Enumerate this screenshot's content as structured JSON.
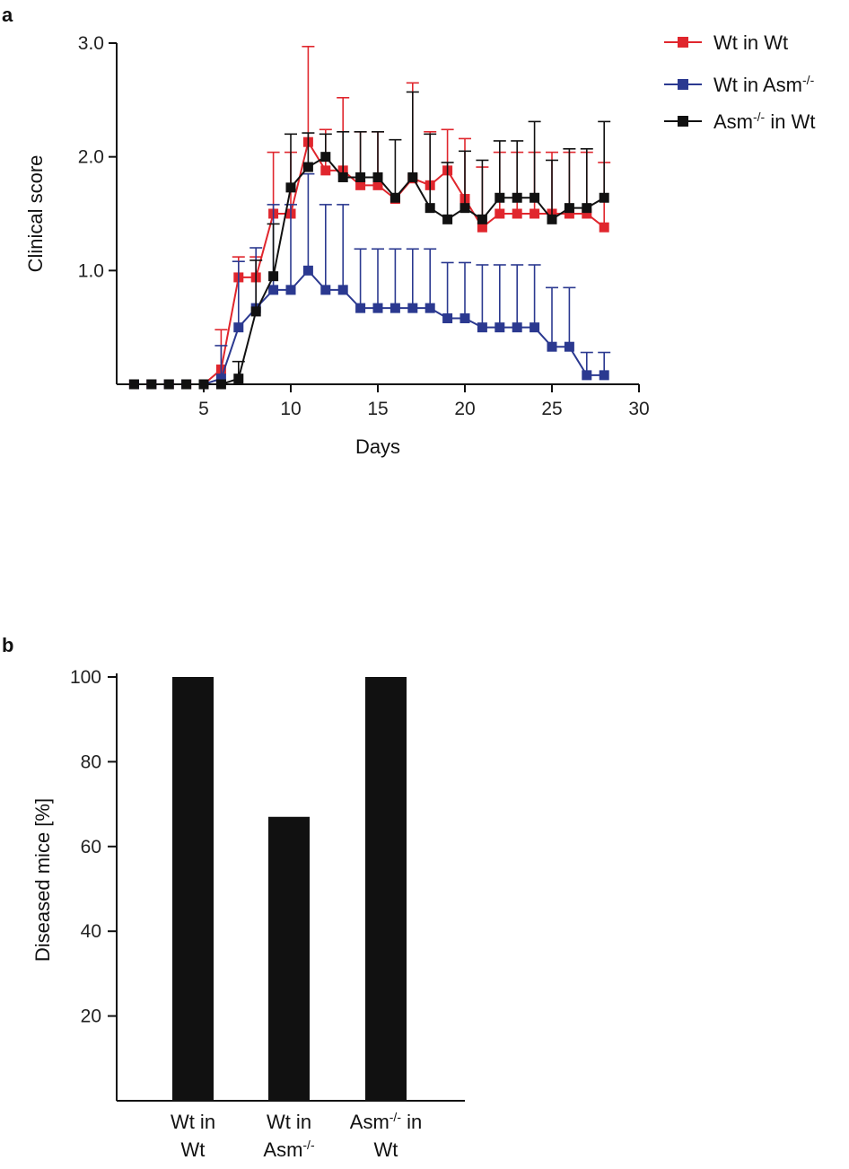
{
  "panels": {
    "a": "a",
    "b": "b"
  },
  "chart_data": [
    {
      "type": "line",
      "xlabel": "Days",
      "ylabel": "Clinical score",
      "xlim": [
        0,
        30
      ],
      "ylim": [
        0,
        3.0
      ],
      "xticks": [
        5,
        10,
        15,
        20,
        25,
        30
      ],
      "xtick_labels": [
        "5",
        "10",
        "15",
        "20",
        "25",
        "30"
      ],
      "yticks": [
        1.0,
        2.0,
        3.0
      ],
      "ytick_labels": [
        "1.0",
        "2.0",
        "3.0"
      ],
      "legend_position": "top-right",
      "error_bars": "upper",
      "x": [
        1,
        2,
        3,
        4,
        5,
        6,
        7,
        8,
        9,
        10,
        11,
        12,
        13,
        14,
        15,
        16,
        17,
        18,
        19,
        20,
        21,
        22,
        23,
        24,
        25,
        26,
        27,
        28
      ],
      "series": [
        {
          "name": "Wt in Wt",
          "color": "#e0262d",
          "values": [
            0,
            0,
            0,
            0,
            0,
            0.13,
            0.94,
            0.94,
            1.5,
            1.5,
            2.13,
            1.88,
            1.88,
            1.75,
            1.75,
            1.63,
            1.81,
            1.75,
            1.88,
            1.63,
            1.38,
            1.5,
            1.5,
            1.5,
            1.5,
            1.5,
            1.5,
            1.38
          ],
          "error": [
            0,
            0,
            0,
            0,
            0,
            0.35,
            0.18,
            0.18,
            0.54,
            0.54,
            0.84,
            0.36,
            0.64,
            0.47,
            0.47,
            0,
            0.84,
            0.47,
            0.36,
            0.53,
            0.53,
            0.54,
            0.54,
            0.54,
            0.54,
            0.54,
            0.54,
            0.57
          ]
        },
        {
          "name": "Wt in Asm",
          "name_sup": "-/-",
          "color": "#2b3990",
          "values": [
            0,
            0,
            0,
            0,
            0,
            0.05,
            0.5,
            0.67,
            0.83,
            0.83,
            1.0,
            0.83,
            0.83,
            0.67,
            0.67,
            0.67,
            0.67,
            0.67,
            0.58,
            0.58,
            0.5,
            0.5,
            0.5,
            0.5,
            0.33,
            0.33,
            0.08,
            0.08
          ],
          "error": [
            0,
            0,
            0,
            0,
            0,
            0.29,
            0.58,
            0.53,
            0.75,
            0.75,
            0.85,
            0.75,
            0.75,
            0.52,
            0.52,
            0.52,
            0.52,
            0.52,
            0.49,
            0.49,
            0.55,
            0.55,
            0.55,
            0.55,
            0.52,
            0.52,
            0.2,
            0.2
          ]
        },
        {
          "name": "in Wt",
          "name_prefix": "Asm",
          "name_sup": "-/-",
          "color": "#111111",
          "values": [
            0,
            0,
            0,
            0,
            0,
            0,
            0.05,
            0.64,
            0.95,
            1.73,
            1.91,
            2.0,
            1.82,
            1.82,
            1.82,
            1.64,
            1.82,
            1.55,
            1.45,
            1.55,
            1.45,
            1.64,
            1.64,
            1.64,
            1.45,
            1.55,
            1.55,
            1.64
          ],
          "error": [
            0,
            0,
            0,
            0,
            0,
            0,
            0.15,
            0.45,
            0.46,
            0.47,
            0.3,
            0.2,
            0.4,
            0.4,
            0.4,
            0.51,
            0.75,
            0.65,
            0.5,
            0.5,
            0.52,
            0.5,
            0.5,
            0.67,
            0.52,
            0.52,
            0.52,
            0.67
          ]
        }
      ]
    },
    {
      "type": "bar",
      "ylabel": "Diseased mice [%]",
      "ylim": [
        0,
        100
      ],
      "yticks": [
        20,
        40,
        60,
        80,
        100
      ],
      "ytick_labels": [
        "20",
        "40",
        "60",
        "80",
        "100"
      ],
      "bar_color": "#111111",
      "categories": [
        {
          "line1": "Wt in",
          "line2": "Wt",
          "line2_sup": ""
        },
        {
          "line1": "Wt in",
          "line2": "Asm",
          "line2_sup": "-/-"
        },
        {
          "line1": "Asm",
          "line1_sup": "-/-",
          "line1_suffix": " in",
          "line2": "Wt",
          "line2_sup": ""
        }
      ],
      "values": [
        100,
        67,
        100
      ]
    }
  ]
}
